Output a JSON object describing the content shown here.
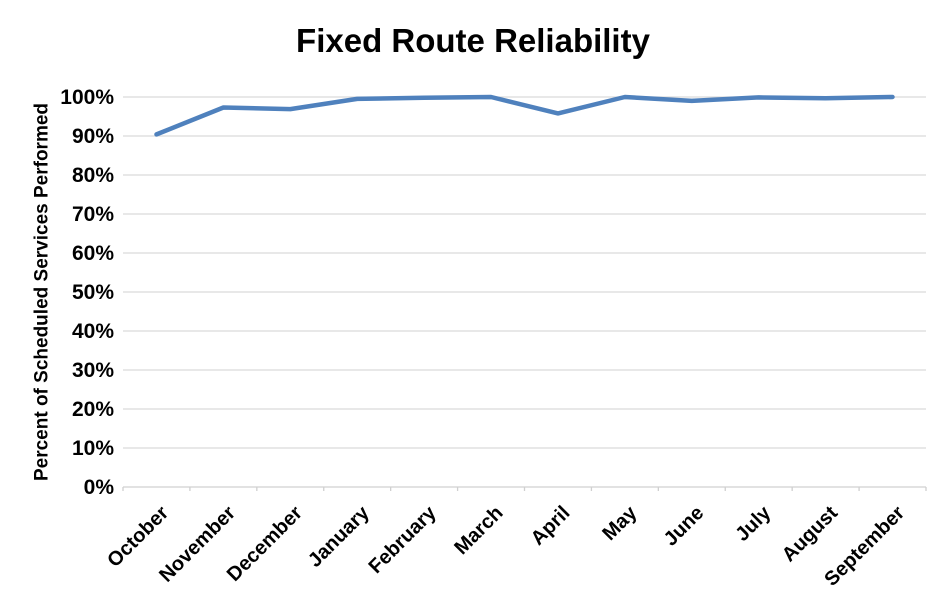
{
  "chart_data": {
    "type": "line",
    "title": "Fixed Route Reliability",
    "xlabel": "",
    "ylabel": "Percent of Scheduled Services Performed",
    "categories": [
      "October",
      "November",
      "December",
      "January",
      "February",
      "March",
      "April",
      "May",
      "June",
      "July",
      "August",
      "September"
    ],
    "values": [
      90.4,
      97.3,
      96.9,
      99.5,
      99.8,
      100,
      95.8,
      100,
      99.0,
      99.9,
      99.7,
      100
    ],
    "ylim": [
      0,
      100
    ],
    "ytick_step": 10,
    "ytick_labels": [
      "0%",
      "10%",
      "20%",
      "30%",
      "40%",
      "50%",
      "60%",
      "70%",
      "80%",
      "90%",
      "100%"
    ],
    "grid": "horizontal",
    "legend": "none",
    "x_tick_rotation_deg": 45,
    "colors": {
      "line": "#4F81BD",
      "gridline": "#D9D9D9",
      "axis": "#D0D0D0",
      "text": "#000000",
      "background": "#FFFFFF"
    }
  }
}
